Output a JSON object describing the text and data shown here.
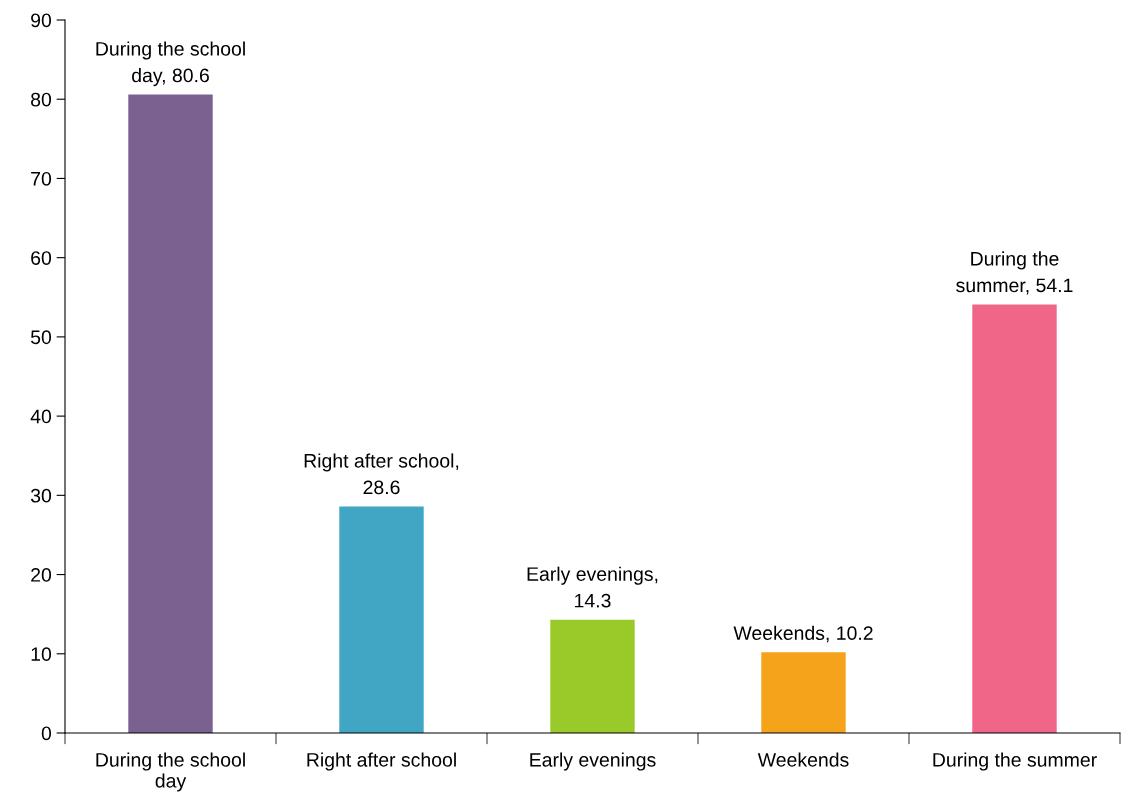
{
  "chart_data": {
    "type": "bar",
    "categories": [
      "During the school\nday",
      "Right after school",
      "Early evenings",
      "Weekends",
      "During the summer"
    ],
    "values": [
      80.6,
      28.6,
      14.3,
      10.2,
      54.1
    ],
    "colors": [
      "#7b6190",
      "#41a5c4",
      "#99ca29",
      "#f4a31b",
      "#f06689"
    ],
    "value_labels": [
      "During the school\nday, 80.6",
      "Right after school,\n28.6",
      "Early evenings,\n14.3",
      "Weekends, 10.2",
      "During the\nsummer, 54.1"
    ],
    "ylim": [
      0,
      90
    ],
    "yticks": [
      0,
      10,
      20,
      30,
      40,
      50,
      60,
      70,
      80,
      90
    ],
    "grid": false,
    "legend": false
  }
}
